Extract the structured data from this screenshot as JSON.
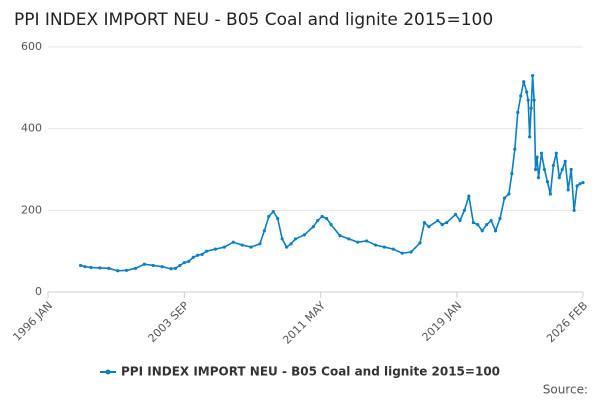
{
  "chart_data": {
    "type": "line",
    "title": "PPI INDEX IMPORT NEU - B05 Coal and lignite 2015=100",
    "source": "Source:",
    "x": [
      "1997 NOV",
      "1998 FEB",
      "1998 JUN",
      "1998 DEC",
      "1999 JUN",
      "1999 DEC",
      "2000 JUN",
      "2000 DEC",
      "2001 JUN",
      "2001 DEC",
      "2002 JUN",
      "2002 DEC",
      "2003 MAR",
      "2003 JUN",
      "2003 SEP",
      "2003 DEC",
      "2004 MAR",
      "2004 JUN",
      "2004 SEP",
      "2004 DEC",
      "2005 JUN",
      "2005 DEC",
      "2006 JUN",
      "2006 DEC",
      "2007 JUN",
      "2007 DEC",
      "2008 MAR",
      "2008 JUN",
      "2008 SEP",
      "2008 DEC",
      "2009 MAR",
      "2009 JUN",
      "2009 SEP",
      "2009 DEC",
      "2010 JUN",
      "2010 DEC",
      "2011 MAR",
      "2011 JUN",
      "2011 SEP",
      "2011 DEC",
      "2012 JUN",
      "2012 DEC",
      "2013 JUN",
      "2013 DEC",
      "2014 JUN",
      "2014 DEC",
      "2015 JUN",
      "2015 DEC",
      "2016 JUN",
      "2016 DEC",
      "2017 MAR",
      "2017 JUN",
      "2017 DEC",
      "2018 MAR",
      "2018 JUN",
      "2018 DEC",
      "2019 MAR",
      "2019 JUN",
      "2019 SEP",
      "2019 DEC",
      "2020 MAR",
      "2020 JUN",
      "2020 SEP",
      "2020 DEC",
      "2021 MAR",
      "2021 JUN",
      "2021 SEP",
      "2021 DEC",
      "2022 FEB",
      "2022 APR",
      "2022 JUN",
      "2022 AUG",
      "2022 OCT",
      "2022 DEC",
      "2023 JAN",
      "2023 FEB",
      "2023 MAR",
      "2023 APR",
      "2023 MAY",
      "2023 JUN",
      "2023 JUL",
      "2023 AUG",
      "2023 OCT",
      "2023 DEC",
      "2024 FEB",
      "2024 APR",
      "2024 JUN",
      "2024 AUG",
      "2024 OCT",
      "2024 DEC",
      "2025 FEB",
      "2025 APR",
      "2025 JUN",
      "2025 AUG",
      "2025 OCT",
      "2025 DEC",
      "2026 FEB"
    ],
    "series": [
      {
        "name": "PPI INDEX IMPORT NEU - B05 Coal and lignite 2015=100",
        "color": "#0a7fc1",
        "values": [
          65,
          62,
          60,
          59,
          58,
          52,
          53,
          58,
          68,
          65,
          62,
          57,
          58,
          65,
          72,
          75,
          85,
          90,
          92,
          100,
          105,
          110,
          122,
          115,
          110,
          118,
          150,
          185,
          197,
          180,
          130,
          110,
          118,
          130,
          140,
          160,
          175,
          185,
          180,
          165,
          138,
          130,
          122,
          125,
          115,
          110,
          105,
          95,
          98,
          120,
          170,
          160,
          175,
          165,
          170,
          190,
          175,
          200,
          235,
          170,
          165,
          150,
          165,
          175,
          150,
          180,
          230,
          240,
          290,
          350,
          440,
          480,
          515,
          490,
          470,
          380,
          450,
          530,
          470,
          300,
          330,
          280,
          340,
          300,
          270,
          240,
          310,
          340,
          280,
          300,
          320,
          250,
          300,
          200,
          260,
          265,
          268
        ]
      }
    ],
    "xlim": [
      "1996 JAN",
      "2026 FEB"
    ],
    "xticks": [
      "1996 JAN",
      "2003 SEP",
      "2011 MAY",
      "2019 JAN",
      "2026 FEB"
    ],
    "ylim": [
      0,
      600
    ],
    "yticks": [
      0,
      200,
      400,
      600
    ],
    "grid": true,
    "legend": "bottom"
  }
}
